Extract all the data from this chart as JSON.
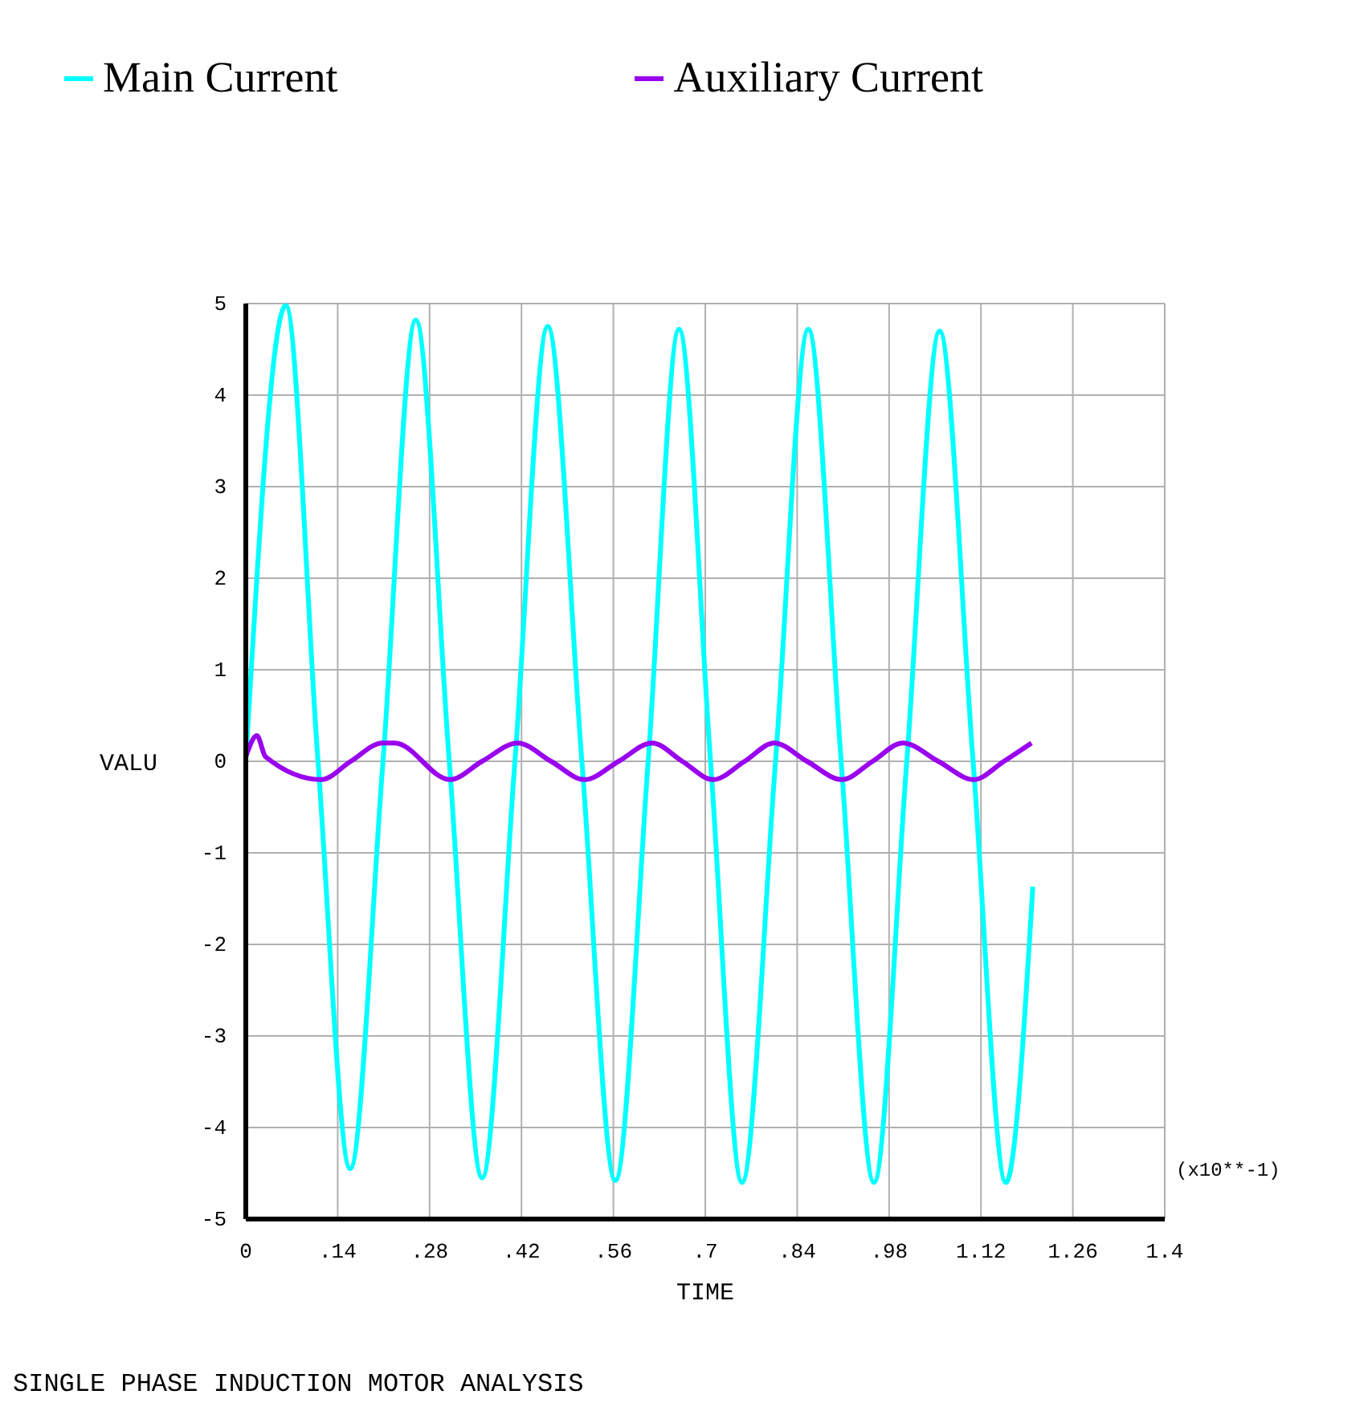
{
  "chart_data": {
    "type": "line",
    "xlabel": "TIME",
    "ylabel": "VALU",
    "annotations": [
      "(x10**-1)",
      "SINGLE PHASE INDUCTION MOTOR ANALYSIS"
    ],
    "xlim": [
      0,
      1.4
    ],
    "ylim": [
      -5,
      5
    ],
    "xticks": [
      0,
      {
        "value": 0.14,
        "label": ".14"
      },
      {
        "value": 0.28,
        "label": ".28"
      },
      {
        "value": 0.42,
        "label": ".42"
      },
      {
        "value": 0.56,
        "label": ".56"
      },
      {
        "value": 0.7,
        "label": ".7"
      },
      {
        "value": 0.84,
        "label": ".84"
      },
      {
        "value": 0.98,
        "label": ".98"
      },
      1.12,
      {
        "value": 1.26,
        "label": "1.26"
      },
      1.4
    ],
    "yticks": [
      -5,
      -4,
      -3,
      -2,
      -1,
      0,
      1,
      2,
      3,
      4,
      5
    ],
    "grid": true,
    "legend": "top",
    "marker": "none",
    "line_style": "solid",
    "series": [
      {
        "name": "Main Current",
        "color": "#00ffff",
        "x": [
          0,
          0.061,
          0.11,
          0.159,
          0.209,
          0.259,
          0.31,
          0.36,
          0.41,
          0.46,
          0.512,
          0.563,
          0.613,
          0.66,
          0.708,
          0.756,
          0.807,
          0.857,
          0.907,
          0.957,
          1.007,
          1.057,
          1.108,
          1.158,
          1.199
        ],
        "values": [
          0,
          4.98,
          0,
          -4.45,
          0,
          4.82,
          0,
          -4.55,
          0,
          4.75,
          0,
          -4.58,
          0,
          4.72,
          0,
          -4.6,
          0,
          4.72,
          0,
          -4.6,
          0,
          4.7,
          0,
          -4.6,
          -1.37
        ]
      },
      {
        "name": "Auxiliary Current",
        "color": "#9900ee",
        "x": [
          0,
          0.017,
          0.03,
          0.115,
          0.16,
          0.208,
          0.227,
          0.311,
          0.36,
          0.414,
          0.465,
          0.516,
          0.568,
          0.619,
          0.665,
          0.712,
          0.76,
          0.805,
          0.855,
          0.908,
          0.955,
          1.001,
          1.055,
          1.109,
          1.155,
          1.197
        ],
        "values": [
          0.05,
          0.28,
          0.05,
          -0.2,
          0,
          0.2,
          0.2,
          -0.2,
          0,
          0.2,
          0,
          -0.2,
          0,
          0.2,
          0,
          -0.2,
          0,
          0.2,
          0,
          -0.2,
          0,
          0.2,
          0,
          -0.2,
          0,
          0.2
        ]
      }
    ]
  }
}
